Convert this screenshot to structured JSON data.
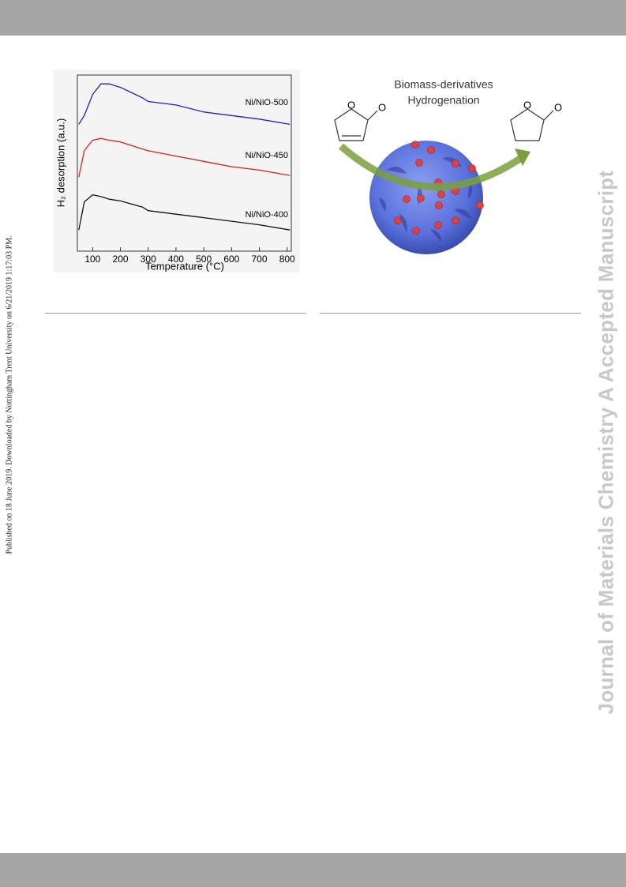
{
  "side_note": "Published on 18 June 2019. Downloaded by Nottingham Trent University on 6/21/2019 1:17:03 PM.",
  "watermark": "Journal of Materials Chemistry A Accepted Manuscript",
  "chart_data": {
    "type": "line",
    "x_label": "Temperature (°C)",
    "y_label": "H₂ desorption (a.u.)",
    "x": [
      50,
      70,
      100,
      130,
      160,
      200,
      280,
      300,
      400,
      500,
      600,
      700,
      810
    ],
    "series": [
      {
        "name": "Ni/NiO-500",
        "color": "#1f1fc8",
        "values": [
          7.2,
          7.7,
          8.9,
          9.5,
          9.5,
          9.3,
          8.7,
          8.5,
          8.3,
          7.9,
          7.7,
          7.5,
          7.2
        ]
      },
      {
        "name": "Ni/NiO-450",
        "color": "#d42020",
        "values": [
          4.2,
          5.7,
          6.3,
          6.4,
          6.3,
          6.2,
          5.8,
          5.7,
          5.4,
          5.1,
          4.8,
          4.6,
          4.3
        ]
      },
      {
        "name": "Ni/NiO-400",
        "color": "#111111",
        "values": [
          1.2,
          2.8,
          3.2,
          3.1,
          2.95,
          2.85,
          2.5,
          2.3,
          2.1,
          1.9,
          1.7,
          1.5,
          1.2
        ]
      }
    ],
    "xlim": [
      45,
      815
    ],
    "xticks": [
      100,
      200,
      300,
      400,
      500,
      600,
      700,
      800
    ],
    "ylim": [
      0,
      10
    ]
  },
  "graphic": {
    "title_lines": [
      "Biomass-derivatives",
      "Hydrogenation"
    ],
    "atom_label": "O"
  }
}
